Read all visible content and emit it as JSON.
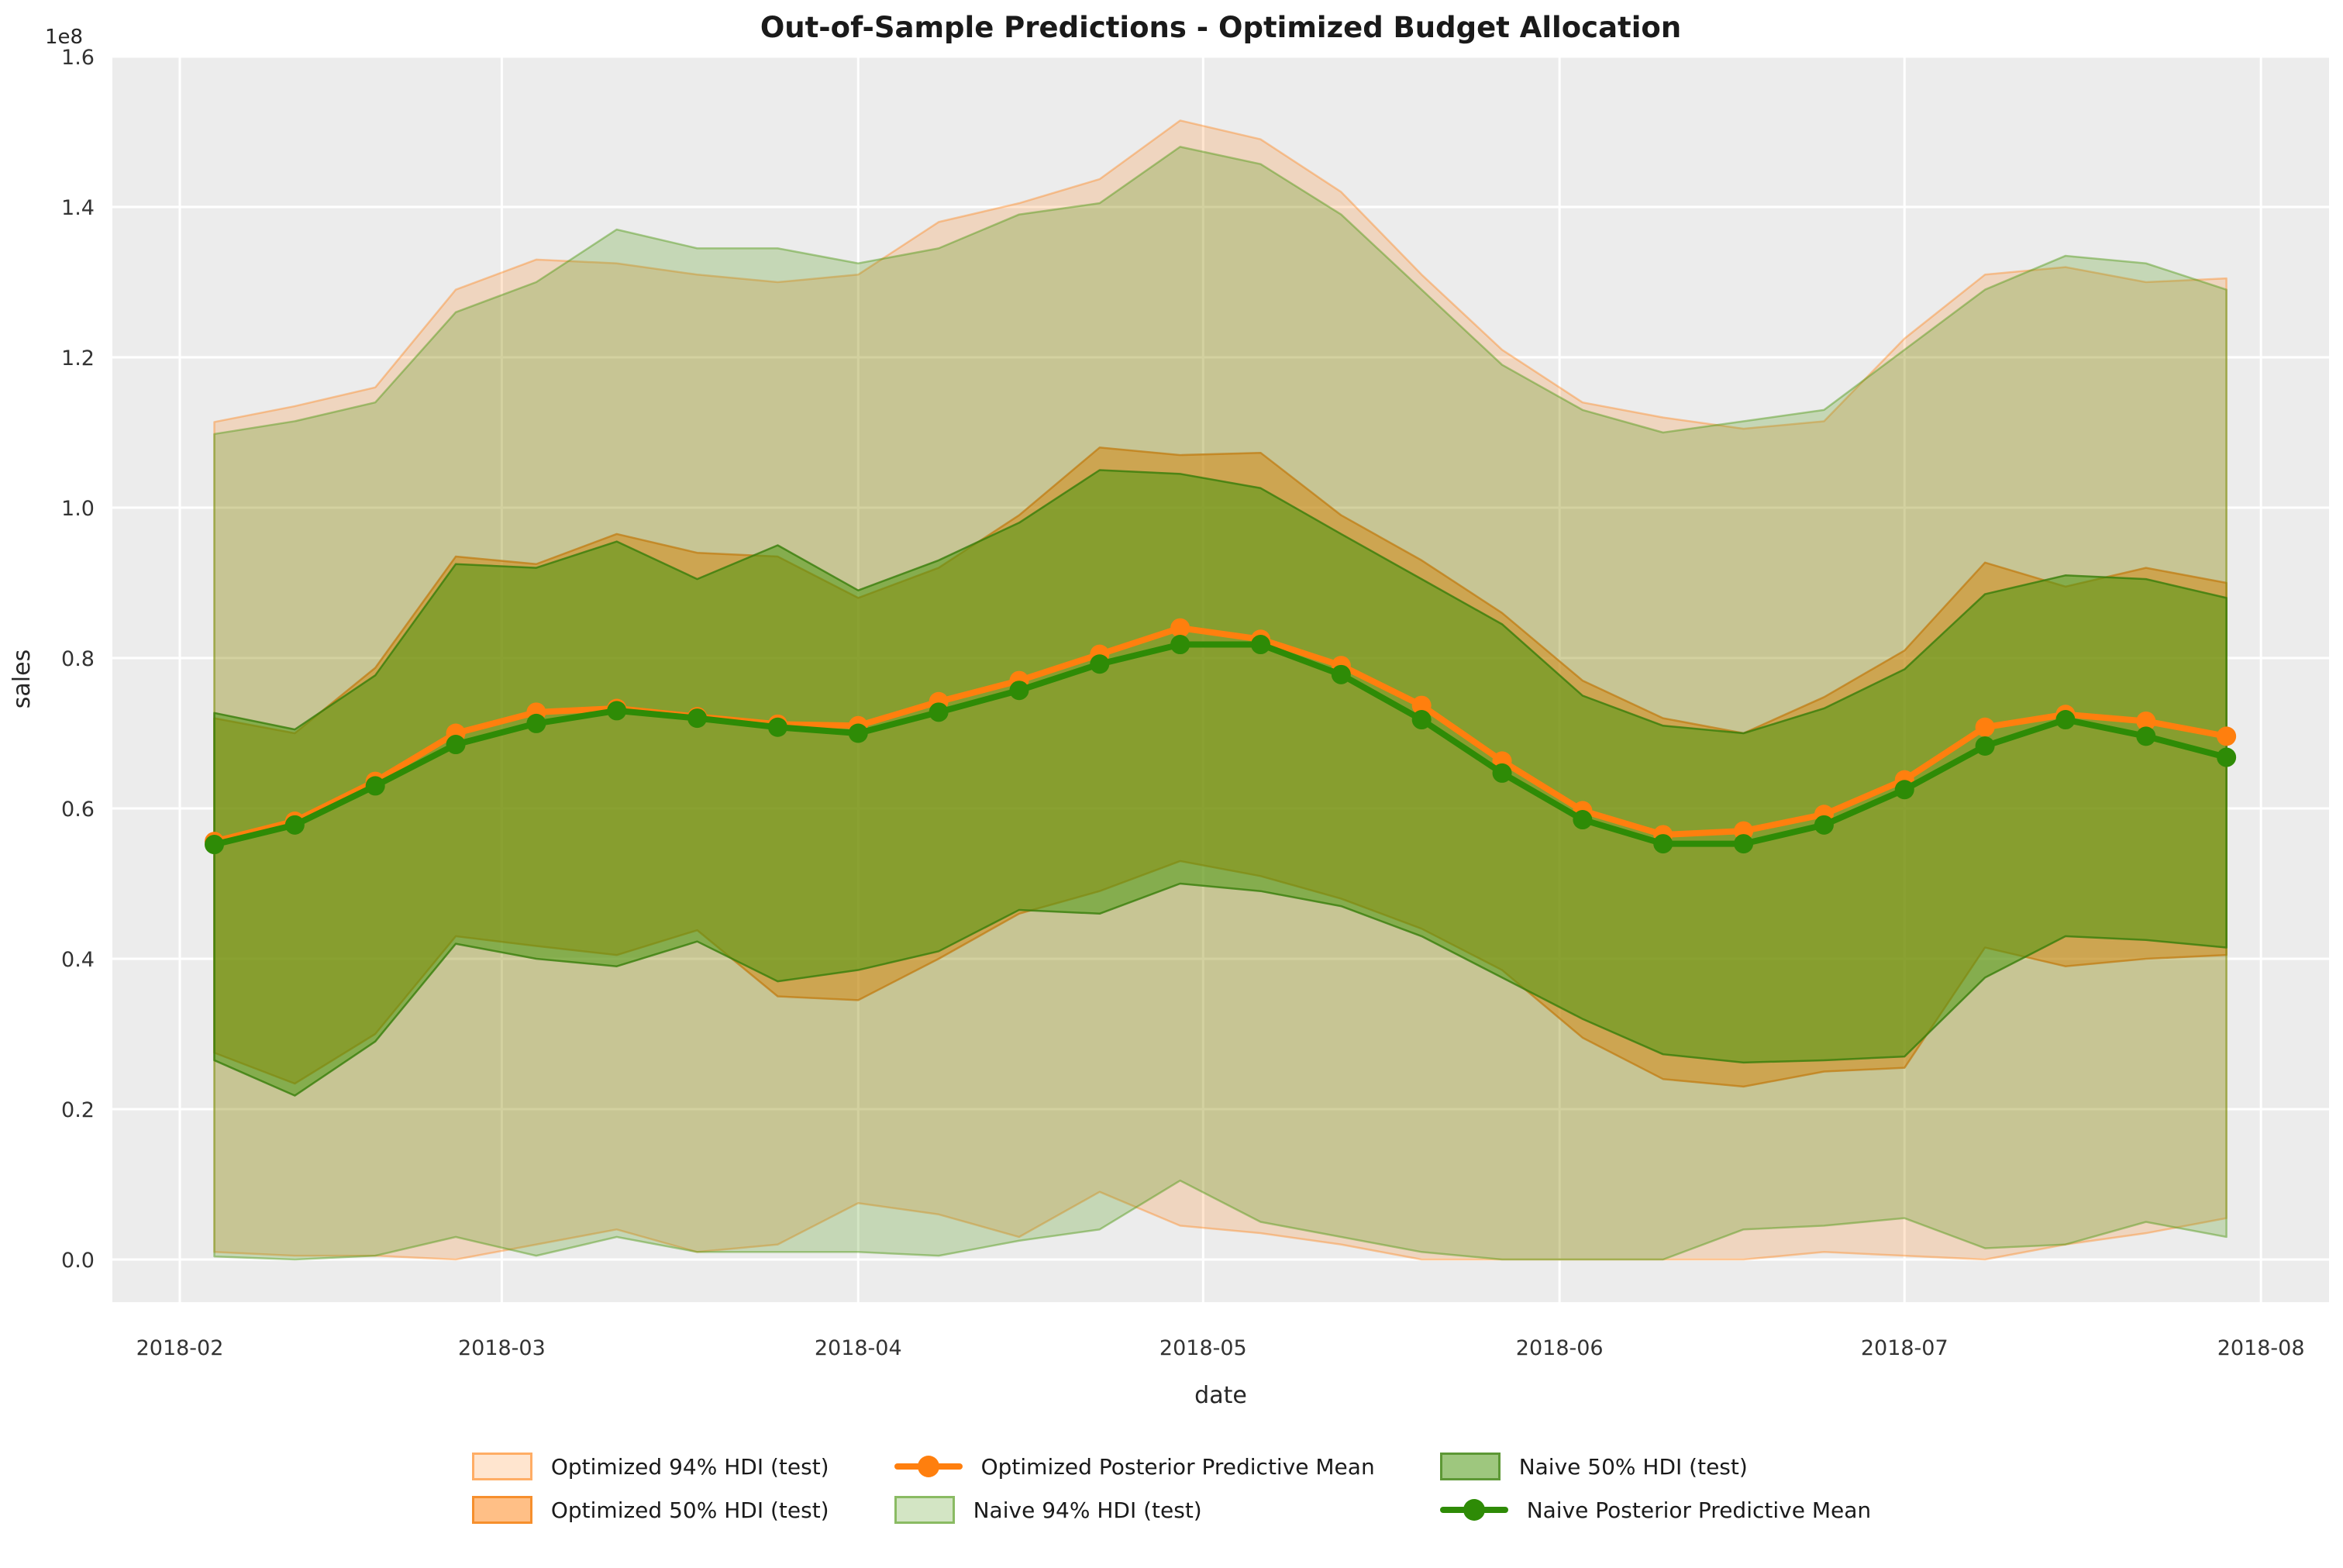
{
  "colors": {
    "figure_bg": "#ffffff",
    "plot_bg": "#ececec",
    "grid": "#ffffff",
    "title_text": "#1a1a1a",
    "tick_text": "#333333",
    "optimized": "#ff7f0e",
    "naive": "#2e8b06"
  },
  "chart_data": {
    "type": "line",
    "title": "Out-of-Sample Predictions - Optimized Budget Allocation",
    "xlabel": "date",
    "ylabel": "sales",
    "y_offset_label": "1e8",
    "y_unit_multiplier": 100000000,
    "ylim": [
      -0.057,
      1.6
    ],
    "grid": true,
    "legend_position": "bottom",
    "x_ticks": [
      "2018-02",
      "2018-03",
      "2018-04",
      "2018-05",
      "2018-06",
      "2018-07",
      "2018-08"
    ],
    "y_tick_values": [
      0.0,
      0.2,
      0.4,
      0.6,
      0.8,
      1.0,
      1.2,
      1.4,
      1.6
    ],
    "dates": [
      "2018-02-04",
      "2018-02-11",
      "2018-02-18",
      "2018-02-25",
      "2018-03-04",
      "2018-03-11",
      "2018-03-18",
      "2018-03-25",
      "2018-04-01",
      "2018-04-08",
      "2018-04-15",
      "2018-04-22",
      "2018-04-29",
      "2018-05-06",
      "2018-05-13",
      "2018-05-20",
      "2018-05-27",
      "2018-06-03",
      "2018-06-10",
      "2018-06-17",
      "2018-06-24",
      "2018-07-01",
      "2018-07-08",
      "2018-07-15",
      "2018-07-22",
      "2018-07-29"
    ],
    "bands": [
      {
        "name": "Optimized 94% HDI (test)",
        "fill": "rgba(255,127,14,0.20)",
        "stroke": "rgba(255,127,14,0.38)",
        "high": [
          1.114,
          1.135,
          1.16,
          1.29,
          1.33,
          1.325,
          1.31,
          1.3,
          1.31,
          1.38,
          1.405,
          1.437,
          1.515,
          1.49,
          1.42,
          1.31,
          1.21,
          1.14,
          1.12,
          1.105,
          1.115,
          1.225,
          1.31,
          1.32,
          1.3,
          1.305
        ],
        "low": [
          0.01,
          0.005,
          0.005,
          0.0,
          0.02,
          0.04,
          0.01,
          0.02,
          0.075,
          0.06,
          0.03,
          0.09,
          0.045,
          0.035,
          0.02,
          0.0,
          0.0,
          0.0,
          0.0,
          0.0,
          0.01,
          0.005,
          0.0,
          0.02,
          0.035,
          0.055
        ]
      },
      {
        "name": "Optimized 50% HDI (test)",
        "fill": "rgba(255,127,14,0.50)",
        "stroke": "rgba(230,110,10,0.70)",
        "high": [
          0.72,
          0.7,
          0.787,
          0.935,
          0.925,
          0.965,
          0.94,
          0.935,
          0.88,
          0.92,
          0.99,
          1.08,
          1.07,
          1.073,
          0.99,
          0.93,
          0.86,
          0.77,
          0.72,
          0.7,
          0.748,
          0.81,
          0.927,
          0.895,
          0.92,
          0.9
        ],
        "low": [
          0.275,
          0.234,
          0.3,
          0.43,
          0.417,
          0.405,
          0.438,
          0.35,
          0.345,
          0.4,
          0.46,
          0.49,
          0.53,
          0.51,
          0.48,
          0.44,
          0.385,
          0.295,
          0.24,
          0.23,
          0.25,
          0.255,
          0.415,
          0.39,
          0.4,
          0.405
        ]
      },
      {
        "name": "Naive 94% HDI (test)",
        "fill": "rgba(79,153,20,0.25)",
        "stroke": "rgba(79,153,20,0.45)",
        "high": [
          1.098,
          1.115,
          1.14,
          1.26,
          1.3,
          1.37,
          1.345,
          1.345,
          1.325,
          1.345,
          1.39,
          1.405,
          1.48,
          1.457,
          1.39,
          1.29,
          1.19,
          1.13,
          1.1,
          1.115,
          1.13,
          1.21,
          1.29,
          1.335,
          1.325,
          1.29
        ],
        "low": [
          0.004,
          0.0,
          0.005,
          0.03,
          0.005,
          0.03,
          0.01,
          0.01,
          0.01,
          0.005,
          0.025,
          0.04,
          0.105,
          0.05,
          0.03,
          0.01,
          0.0,
          0.0,
          0.0,
          0.04,
          0.045,
          0.055,
          0.015,
          0.02,
          0.05,
          0.03
        ]
      },
      {
        "name": "Naive 50% HDI (test)",
        "fill": "rgba(79,153,20,0.55)",
        "stroke": "rgba(55,125,10,0.80)",
        "high": [
          0.727,
          0.705,
          0.777,
          0.925,
          0.92,
          0.955,
          0.905,
          0.95,
          0.89,
          0.93,
          0.98,
          1.05,
          1.045,
          1.026,
          0.965,
          0.905,
          0.845,
          0.75,
          0.71,
          0.7,
          0.733,
          0.785,
          0.885,
          0.91,
          0.905,
          0.88
        ],
        "low": [
          0.265,
          0.218,
          0.29,
          0.42,
          0.4,
          0.39,
          0.423,
          0.37,
          0.385,
          0.41,
          0.465,
          0.46,
          0.5,
          0.49,
          0.47,
          0.43,
          0.375,
          0.32,
          0.273,
          0.262,
          0.265,
          0.27,
          0.375,
          0.43,
          0.425,
          0.415
        ]
      }
    ],
    "series": [
      {
        "name": "Optimized Posterior Predictive Mean",
        "color": "#ff7f0e",
        "values": [
          0.556,
          0.583,
          0.636,
          0.7,
          0.728,
          0.733,
          0.722,
          0.712,
          0.71,
          0.742,
          0.77,
          0.805,
          0.84,
          0.825,
          0.79,
          0.737,
          0.663,
          0.597,
          0.565,
          0.57,
          0.592,
          0.638,
          0.708,
          0.725,
          0.716,
          0.696
        ]
      },
      {
        "name": "Naive Posterior Predictive Mean",
        "color": "#2e8b06",
        "values": [
          0.552,
          0.578,
          0.63,
          0.685,
          0.713,
          0.73,
          0.72,
          0.708,
          0.7,
          0.728,
          0.757,
          0.792,
          0.818,
          0.818,
          0.778,
          0.718,
          0.647,
          0.585,
          0.553,
          0.553,
          0.578,
          0.625,
          0.683,
          0.718,
          0.696,
          0.668
        ]
      }
    ]
  },
  "legend": {
    "items": [
      {
        "label": "Optimized 94% HDI (test)",
        "type": "patch",
        "fill": "rgba(255,127,14,0.20)",
        "stroke": "rgba(255,127,14,0.55)"
      },
      {
        "label": "Optimized 50% HDI (test)",
        "type": "patch",
        "fill": "rgba(255,127,14,0.50)",
        "stroke": "rgba(245,140,40,0.95)"
      },
      {
        "label": "Optimized Posterior Predictive Mean",
        "type": "line",
        "color": "#ff7f0e"
      },
      {
        "label": "Naive 94% HDI (test)",
        "type": "patch",
        "fill": "rgba(79,153,20,0.25)",
        "stroke": "rgba(79,153,20,0.55)"
      },
      {
        "label": "Naive 50% HDI (test)",
        "type": "patch",
        "fill": "rgba(79,153,20,0.55)",
        "stroke": "rgba(90,150,50,0.95)"
      },
      {
        "label": "Naive Posterior Predictive Mean",
        "type": "line",
        "color": "#2e8b06"
      }
    ]
  }
}
